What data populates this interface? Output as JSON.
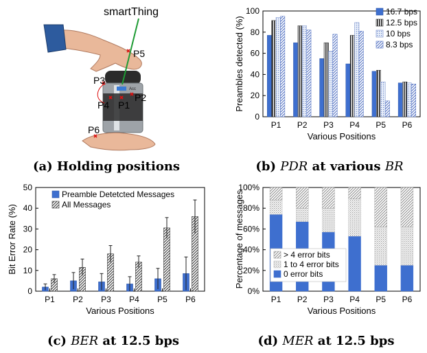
{
  "panel_a": {
    "label_smartthing": "smartThing",
    "positions": [
      "P1",
      "P2",
      "P3",
      "P4",
      "P5",
      "P6"
    ],
    "acc_label": "Acc",
    "caption": "(a) Holding positions"
  },
  "captions": {
    "b_prefix": "(b) ",
    "b_em": "PDR",
    "b_mid": " at various ",
    "b_em2": "BR",
    "c_prefix": "(c) ",
    "c_em": "BER",
    "c_rest": " at 12.5 bps",
    "d_prefix": "(d) ",
    "d_em": "MER",
    "d_rest": " at 12.5 bps"
  },
  "colors": {
    "blue": "#3e6fcf",
    "dark": "#222222",
    "hatch": "#555555"
  },
  "chart_data": [
    {
      "id": "b",
      "type": "bar",
      "title": "",
      "xlabel": "Various Positions",
      "ylabel": "Preambles detected (%)",
      "ylim": [
        0,
        100
      ],
      "yticks": [
        0,
        20,
        40,
        60,
        80,
        100
      ],
      "categories": [
        "P1",
        "P2",
        "P3",
        "P4",
        "P5",
        "P6"
      ],
      "legend_position": "top-right",
      "series": [
        {
          "name": "16.7 bps",
          "values": [
            77,
            70,
            55,
            50,
            43,
            32
          ]
        },
        {
          "name": "12.5 bps",
          "values": [
            91,
            86,
            70,
            77,
            44,
            33
          ]
        },
        {
          "name": "10 bps",
          "values": [
            94,
            86,
            62,
            89,
            33,
            32
          ]
        },
        {
          "name": "8.3 bps",
          "values": [
            95,
            82,
            78,
            81,
            15,
            31
          ]
        }
      ]
    },
    {
      "id": "c",
      "type": "bar",
      "title": "",
      "xlabel": "Various Positions",
      "ylabel": "Bit Error Rate (%)",
      "ylim": [
        0,
        50
      ],
      "yticks": [
        0,
        10,
        20,
        30,
        40,
        50
      ],
      "categories": [
        "P1",
        "P2",
        "P3",
        "P4",
        "P5",
        "P6"
      ],
      "legend_position": "top-left",
      "series": [
        {
          "name": "Preamble Detetcted Messages",
          "values": [
            2,
            5,
            4.5,
            3.5,
            6,
            8.5
          ],
          "err": [
            1.5,
            4,
            4,
            3.5,
            5,
            8
          ]
        },
        {
          "name": "All Messages",
          "values": [
            6,
            11.5,
            18,
            14,
            30.5,
            36
          ],
          "err": [
            2,
            4,
            4,
            3,
            5,
            8
          ]
        }
      ]
    },
    {
      "id": "d",
      "type": "bar",
      "stacked": true,
      "title": "",
      "xlabel": "Various Positions",
      "ylabel": "Percentage of messages",
      "ylim": [
        0,
        100
      ],
      "yticks": [
        "0%",
        "20%",
        "40%",
        "60%",
        "80%",
        "100%"
      ],
      "categories": [
        "P1",
        "P2",
        "P3",
        "P4",
        "P5",
        "P6"
      ],
      "legend_position": "bottom-left",
      "series": [
        {
          "name": "0 error bits",
          "values": [
            74,
            67,
            57,
            53,
            25,
            25
          ]
        },
        {
          "name": "1 to 4 error bits",
          "values": [
            14,
            13,
            23,
            36,
            37,
            37
          ]
        },
        {
          "name": "> 4 error bits",
          "values": [
            12,
            20,
            20,
            11,
            38,
            38
          ]
        }
      ]
    }
  ]
}
